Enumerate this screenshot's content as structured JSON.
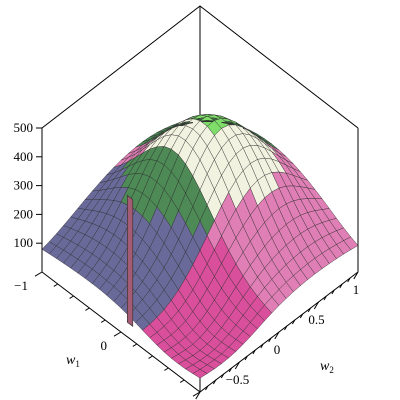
{
  "chart_data": {
    "type": "surface3d",
    "title": "",
    "z_axis": {
      "ticks": [
        "100",
        "200",
        "300",
        "400",
        "500"
      ],
      "range": [
        0,
        500
      ]
    },
    "w1_axis": {
      "label": "w",
      "label_subscript": "1",
      "ticks": [
        "−1",
        "0"
      ],
      "range": [
        -1,
        1
      ]
    },
    "w2_axis": {
      "label": "w",
      "label_subscript": "2",
      "ticks": [
        "−0.5",
        "0",
        "0.5",
        "1"
      ],
      "range": [
        -1,
        1
      ]
    },
    "surface": {
      "plateau_z": 480,
      "valley_z": 80,
      "spike": {
        "w1": 0.05,
        "w2": -0.95,
        "z": 470
      },
      "colors": [
        "#6a6a9a",
        "#4d8a55",
        "#7fdd6a",
        "#f2f2e0",
        "#e07fb5",
        "#d94f9c"
      ]
    },
    "grid": true,
    "box": true
  }
}
